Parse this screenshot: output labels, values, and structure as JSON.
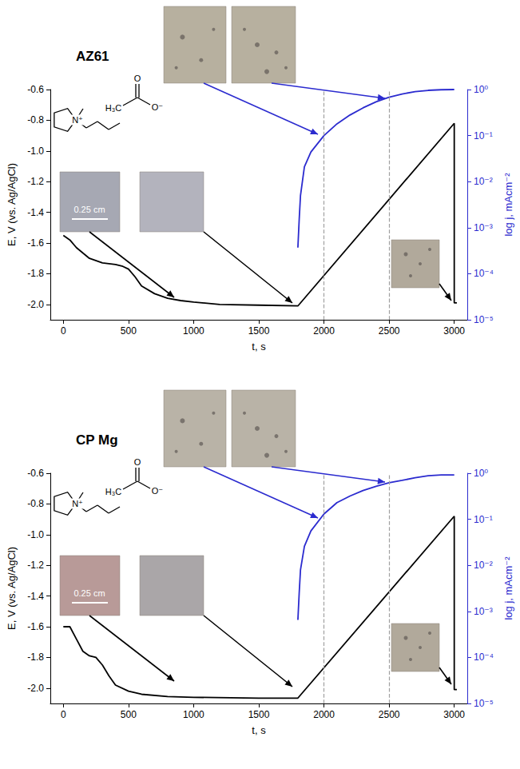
{
  "chart_data": [
    {
      "type": "line",
      "title": "AZ61",
      "x_label": "t, s",
      "y_label": "E, V (vs. Ag/AgCl)",
      "y2_label": "log j, mAcm⁻²",
      "xlim": [
        -100,
        3100
      ],
      "xticks": [
        0,
        500,
        1000,
        1500,
        2000,
        2500,
        3000
      ],
      "ylim": [
        -2.1,
        -0.6
      ],
      "yticks": [
        {
          "value": -2,
          "label": "-2.0"
        },
        -1.8,
        -1.6,
        -1.4,
        -1.2,
        {
          "value": -1,
          "label": "-1.0"
        },
        -0.8,
        -0.6
      ],
      "y2lim": [
        1e-05,
        1
      ],
      "y2ticks": [
        {
          "value": 1e-05,
          "label": "10⁻⁵"
        },
        {
          "value": 0.0001,
          "label": "10⁻⁴"
        },
        {
          "value": 0.001,
          "label": "10⁻³"
        },
        {
          "value": 0.01,
          "label": "10⁻²"
        },
        {
          "value": 0.1,
          "label": "10⁻¹"
        },
        {
          "value": 1,
          "label": "10⁰"
        }
      ],
      "log": "y2",
      "grid": false,
      "vlines": [
        2000,
        2500
      ],
      "scale_bar": "0.25 cm",
      "structure_labels": [
        "N⁺",
        "H₃C",
        "O",
        "O⁻"
      ],
      "series": [
        {
          "color": "#000000",
          "marker": "none",
          "line_style": "solid",
          "x": [
            0,
            50,
            100,
            200,
            300,
            400,
            450,
            500,
            550,
            600,
            700,
            800,
            900,
            1000,
            1200,
            1500,
            1800,
            3000,
            3000,
            3020
          ],
          "values": [
            -1.55,
            -1.58,
            -1.63,
            -1.7,
            -1.73,
            -1.74,
            -1.75,
            -1.77,
            -1.82,
            -1.88,
            -1.93,
            -1.96,
            -1.975,
            -1.985,
            -2.0,
            -2.005,
            -2.01,
            -0.82,
            -1.99,
            -1.99
          ]
        },
        {
          "color": "#2b2bcf",
          "marker": "none",
          "line_style": "solid",
          "axis": "y2",
          "x": [
            1800,
            1810,
            1820,
            1850,
            1900,
            2000,
            2100,
            2200,
            2300,
            2400,
            2500,
            2600,
            2700,
            2800,
            2900,
            3000
          ],
          "values": [
            0.00037,
            0.0015,
            0.005,
            0.021,
            0.044,
            0.1,
            0.18,
            0.28,
            0.4,
            0.54,
            0.68,
            0.8,
            0.9,
            0.96,
            0.99,
            1.0
          ]
        }
      ]
    },
    {
      "type": "line",
      "title": "CP Mg",
      "x_label": "t, s",
      "y_label": "E, V (vs. Ag/AgCl)",
      "y2_label": "log j, mAcm⁻²",
      "xlim": [
        -100,
        3100
      ],
      "xticks": [
        0,
        500,
        1000,
        1500,
        2000,
        2500,
        3000
      ],
      "ylim": [
        -2.1,
        -0.6
      ],
      "yticks": [
        {
          "value": -2,
          "label": "-2.0"
        },
        -1.8,
        -1.6,
        -1.4,
        -1.2,
        {
          "value": -1,
          "label": "-1.0"
        },
        -0.8,
        -0.6
      ],
      "y2lim": [
        1e-05,
        1
      ],
      "y2ticks": [
        {
          "value": 1e-05,
          "label": "10⁻⁵"
        },
        {
          "value": 0.0001,
          "label": "10⁻⁴"
        },
        {
          "value": 0.001,
          "label": "10⁻³"
        },
        {
          "value": 0.01,
          "label": "10⁻²"
        },
        {
          "value": 0.1,
          "label": "10⁻¹"
        },
        {
          "value": 1,
          "label": "10⁰"
        }
      ],
      "log": "y2",
      "grid": false,
      "vlines": [
        2000,
        2500
      ],
      "scale_bar": "0.25 cm",
      "structure_labels": [
        "N⁺",
        "H₃C",
        "O",
        "O⁻"
      ],
      "series": [
        {
          "color": "#000000",
          "marker": "none",
          "line_style": "solid",
          "x": [
            0,
            50,
            100,
            150,
            200,
            250,
            300,
            350,
            400,
            500,
            600,
            800,
            1000,
            1500,
            1800,
            3000,
            3000,
            3020
          ],
          "values": [
            -1.6,
            -1.6,
            -1.68,
            -1.76,
            -1.79,
            -1.8,
            -1.85,
            -1.92,
            -1.98,
            -2.02,
            -2.04,
            -2.055,
            -2.06,
            -2.065,
            -2.065,
            -0.88,
            -2.01,
            -2.01
          ]
        },
        {
          "color": "#2b2bcf",
          "marker": "none",
          "line_style": "solid",
          "axis": "y2",
          "x": [
            1800,
            1810,
            1820,
            1850,
            1900,
            2000,
            2100,
            2200,
            2300,
            2400,
            2500,
            2600,
            2700,
            2800,
            2900,
            3000
          ],
          "values": [
            0.00065,
            0.0025,
            0.008,
            0.026,
            0.056,
            0.13,
            0.23,
            0.32,
            0.42,
            0.52,
            0.62,
            0.7,
            0.8,
            0.88,
            0.92,
            0.92
          ]
        }
      ]
    }
  ]
}
